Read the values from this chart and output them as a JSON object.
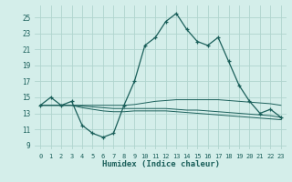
{
  "xlabel": "Humidex (Indice chaleur)",
  "bg_color": "#d4eeea",
  "grid_color": "#b0d4ce",
  "line_color": "#1a5f5a",
  "xlim": [
    -0.5,
    23.5
  ],
  "ylim": [
    8.5,
    26.5
  ],
  "yticks": [
    9,
    11,
    13,
    15,
    17,
    19,
    21,
    23,
    25
  ],
  "xticks": [
    0,
    1,
    2,
    3,
    4,
    5,
    6,
    7,
    8,
    9,
    10,
    11,
    12,
    13,
    14,
    15,
    16,
    17,
    18,
    19,
    20,
    21,
    22,
    23
  ],
  "main_y": [
    14.0,
    15.0,
    14.0,
    14.5,
    11.5,
    10.5,
    10.0,
    10.5,
    14.0,
    17.0,
    21.5,
    22.5,
    24.5,
    25.5,
    23.5,
    22.0,
    21.5,
    22.5,
    19.5,
    16.5,
    14.5,
    13.0,
    13.5,
    12.5
  ],
  "line2_y": [
    14.0,
    14.0,
    14.0,
    14.0,
    14.0,
    14.0,
    14.0,
    14.0,
    14.0,
    14.1,
    14.3,
    14.5,
    14.6,
    14.7,
    14.7,
    14.7,
    14.7,
    14.7,
    14.6,
    14.5,
    14.4,
    14.3,
    14.2,
    14.0
  ],
  "line3_y": [
    14.0,
    14.0,
    14.0,
    14.0,
    13.9,
    13.8,
    13.7,
    13.6,
    13.6,
    13.6,
    13.6,
    13.6,
    13.6,
    13.5,
    13.4,
    13.4,
    13.3,
    13.2,
    13.1,
    13.0,
    12.9,
    12.8,
    12.7,
    12.5
  ],
  "line4_y": [
    14.0,
    14.0,
    14.0,
    14.0,
    13.7,
    13.5,
    13.3,
    13.2,
    13.2,
    13.3,
    13.3,
    13.3,
    13.3,
    13.2,
    13.1,
    13.0,
    12.9,
    12.8,
    12.7,
    12.6,
    12.5,
    12.4,
    12.3,
    12.2
  ]
}
